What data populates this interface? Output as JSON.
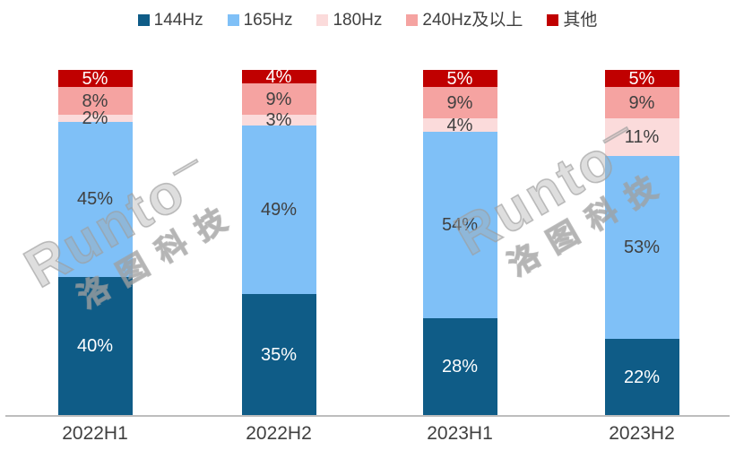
{
  "watermark": {
    "brand": "Runto",
    "tm": "—",
    "chinese": "洛图科技"
  },
  "colors": {
    "background": "#FFFFFF",
    "axis_line": "#BDBDBD",
    "legend_text": "#404040",
    "label_dark": "#404040",
    "label_light": "#FFFFFF"
  },
  "chart_data": {
    "type": "bar",
    "stacked": true,
    "unit": "%",
    "title": "",
    "categories": [
      "2022H1",
      "2022H2",
      "2023H1",
      "2023H2"
    ],
    "series": [
      {
        "name": "144Hz",
        "color": "#0F5C87",
        "label_color": "#FFFFFF",
        "values": [
          40,
          35,
          28,
          22
        ]
      },
      {
        "name": "165Hz",
        "color": "#7FC0F7",
        "label_color": "#404040",
        "values": [
          45,
          49,
          54,
          53
        ]
      },
      {
        "name": "180Hz",
        "color": "#FBDBDB",
        "label_color": "#404040",
        "values": [
          2,
          3,
          4,
          11
        ]
      },
      {
        "name": "240Hz及以上",
        "color": "#F5A3A1",
        "label_color": "#404040",
        "values": [
          8,
          9,
          9,
          9
        ]
      },
      {
        "name": "其他",
        "color": "#C00000",
        "label_color": "#FFFFFF",
        "values": [
          5,
          4,
          5,
          5
        ]
      }
    ],
    "legend_position": "top",
    "ylim": [
      0,
      100
    ],
    "grid": false,
    "y_axis_visible": false
  }
}
